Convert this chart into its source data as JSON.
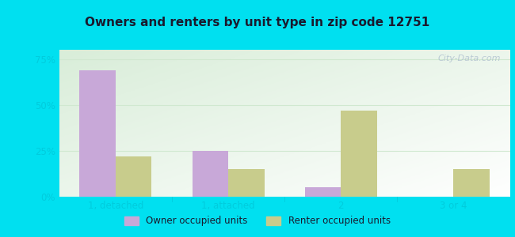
{
  "title": "Owners and renters by unit type in zip code 12751",
  "categories": [
    "1, detached",
    "1, attached",
    "2",
    "3 or 4"
  ],
  "owner_values": [
    69,
    25,
    5,
    0
  ],
  "renter_values": [
    22,
    15,
    47,
    15
  ],
  "owner_color": "#c8a8d8",
  "renter_color": "#c8cc8c",
  "plot_bg_top_left": "#d8edd8",
  "plot_bg_bottom_right": "#f0f8f0",
  "outer_background": "#00e0f0",
  "yticks": [
    0,
    25,
    50,
    75
  ],
  "ylim": [
    0,
    80
  ],
  "bar_width": 0.32,
  "legend_labels": [
    "Owner occupied units",
    "Renter occupied units"
  ],
  "watermark": "City-Data.com",
  "title_color": "#1a1a2e",
  "tick_color": "#00ccdd",
  "grid_color": "#d0e8d0"
}
